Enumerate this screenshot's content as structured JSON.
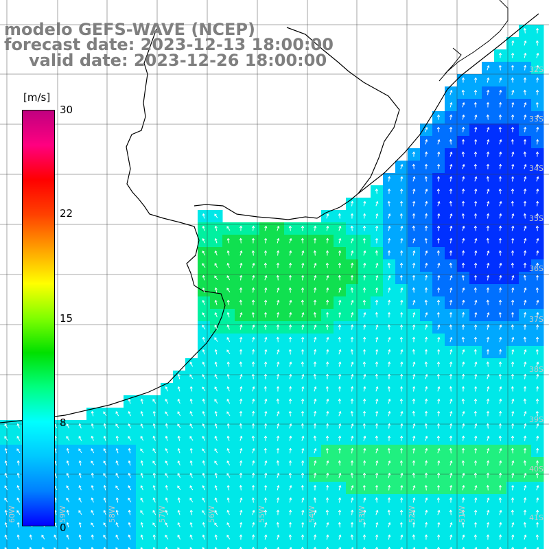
{
  "title": {
    "line1": "modelo GEFS-WAVE (NCEP)",
    "line2": "forecast date: 2023-12-13 18:00:00",
    "line3": "valid date: 2023-12-26 18:00:00"
  },
  "colorbar": {
    "unit": "[m/s]",
    "ticks": [
      "30",
      "22",
      "15",
      "8",
      "0"
    ],
    "colors": [
      "#0000ff",
      "#0080ff",
      "#00c8ff",
      "#00ffff",
      "#00ff80",
      "#00e000",
      "#80ff00",
      "#ffff00",
      "#ffa000",
      "#ff4000",
      "#ff0000",
      "#ff0080",
      "#c00080"
    ]
  },
  "lat_labels": [
    "32S",
    "33S",
    "34S",
    "35S",
    "36S",
    "37S",
    "38S",
    "39S",
    "40S",
    "41S"
  ],
  "lon_labels": [
    "60W",
    "59W",
    "58W",
    "57W",
    "56W",
    "55W",
    "54W",
    "53W",
    "52W",
    "51W"
  ],
  "colors": {
    "background": "#ffffff",
    "title": "#7f7f7f",
    "grid": "#000000",
    "coast": "#000000",
    "arrow": "#ffffff",
    "grid_label": "#c8c8c8"
  }
}
